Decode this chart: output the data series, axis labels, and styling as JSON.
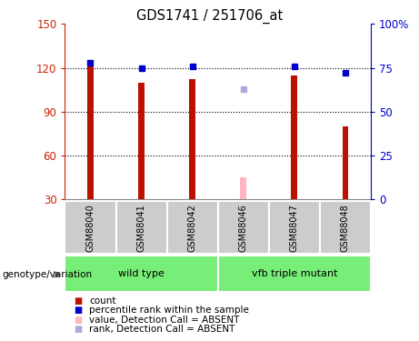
{
  "title": "GDS1741 / 251706_at",
  "samples": [
    "GSM88040",
    "GSM88041",
    "GSM88042",
    "GSM88046",
    "GSM88047",
    "GSM88048"
  ],
  "bar_values": [
    125,
    110,
    112,
    45,
    115,
    80
  ],
  "bar_colors": [
    "#bb1100",
    "#bb1100",
    "#bb1100",
    "#ffb6c1",
    "#bb1100",
    "#bb1100"
  ],
  "rank_values": [
    78,
    75,
    76,
    63,
    76,
    72
  ],
  "rank_colors": [
    "#0000cc",
    "#0000cc",
    "#0000cc",
    "#aaaadd",
    "#0000cc",
    "#0000cc"
  ],
  "absent_flags": [
    false,
    false,
    false,
    true,
    false,
    false
  ],
  "ylim_left": [
    30,
    150
  ],
  "ylim_right": [
    0,
    100
  ],
  "yticks_left": [
    30,
    60,
    90,
    120,
    150
  ],
  "yticks_right": [
    0,
    25,
    50,
    75,
    100
  ],
  "ytick_labels_right": [
    "0",
    "25",
    "50",
    "75",
    "100%"
  ],
  "left_axis_color": "#cc2200",
  "right_axis_color": "#0000cc",
  "bar_width": 0.12,
  "background_color": "#ffffff",
  "plot_bg": "#ffffff",
  "sample_area_color": "#cccccc",
  "group_wt_color": "#77ee77",
  "group_wt_label": "wild type",
  "group_mut_color": "#77ee77",
  "group_mut_label": "vfb triple mutant",
  "legend_items": [
    {
      "label": "count",
      "color": "#bb1100"
    },
    {
      "label": "percentile rank within the sample",
      "color": "#0000cc"
    },
    {
      "label": "value, Detection Call = ABSENT",
      "color": "#ffb6c1"
    },
    {
      "label": "rank, Detection Call = ABSENT",
      "color": "#aaaadd"
    }
  ]
}
